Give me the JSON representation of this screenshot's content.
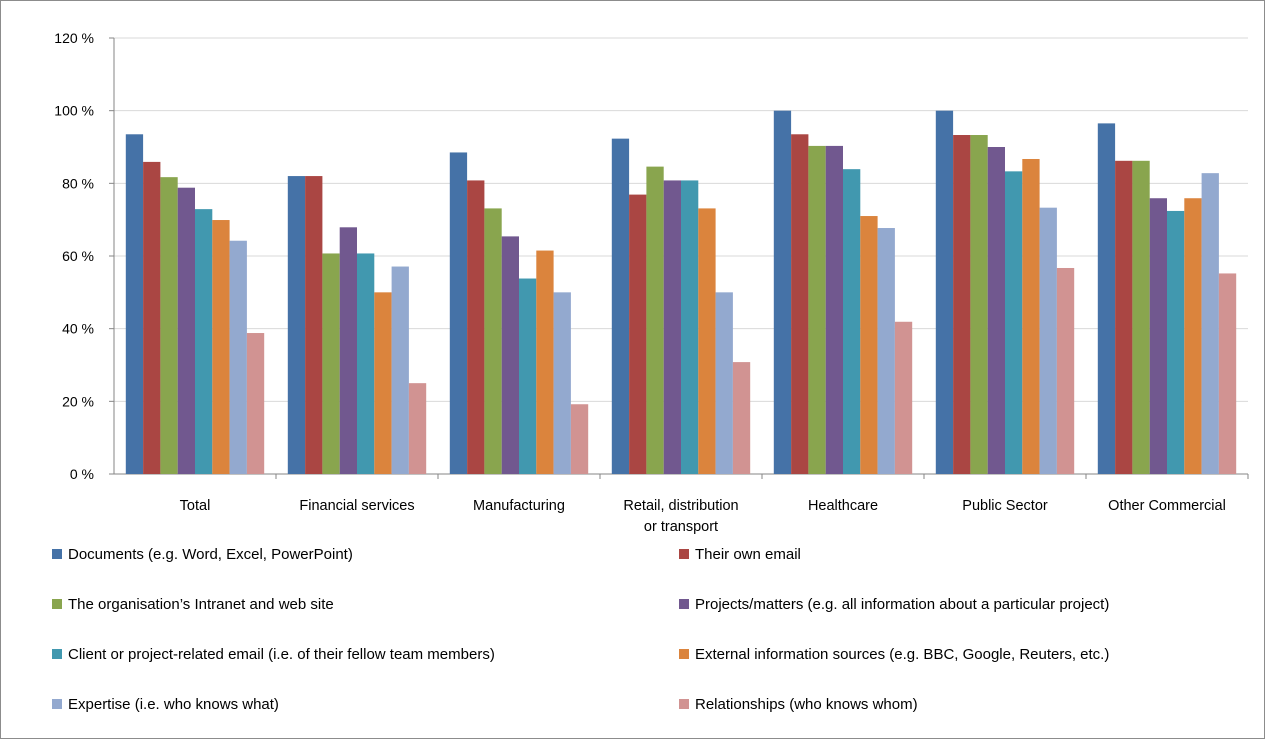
{
  "chart_data": {
    "type": "bar",
    "categories": [
      "Total",
      "Financial services",
      "Manufacturing",
      "Retail, distribution or transport",
      "Healthcare",
      "Public Sector",
      "Other Commercial"
    ],
    "category_lines": [
      [
        "Total"
      ],
      [
        "Financial services"
      ],
      [
        "Manufacturing"
      ],
      [
        "Retail, distribution",
        "or transport"
      ],
      [
        "Healthcare"
      ],
      [
        "Public Sector"
      ],
      [
        "Other Commercial"
      ]
    ],
    "ylim": [
      0,
      120
    ],
    "yticks": [
      0,
      20,
      40,
      60,
      80,
      100,
      120
    ],
    "ytick_labels": [
      "0 %",
      "20 %",
      "40 %",
      "60 %",
      "80 %",
      "100 %",
      "120 %"
    ],
    "grid": true,
    "legend_position": "bottom",
    "series": [
      {
        "name": "Documents (e.g. Word, Excel, PowerPoint)",
        "color": "#4572A7",
        "values": [
          93.5,
          82,
          88.5,
          92.3,
          100,
          100,
          96.5
        ]
      },
      {
        "name": "Their own email",
        "color": "#AA4643",
        "values": [
          85.9,
          82,
          80.8,
          76.9,
          93.5,
          93.3,
          86.2
        ]
      },
      {
        "name": "The organisation’s Intranet and web site",
        "color": "#89A54E",
        "values": [
          81.7,
          60.7,
          73.1,
          84.6,
          90.3,
          93.3,
          86.2
        ]
      },
      {
        "name": "Projects/matters (e.g. all information about a particular project)",
        "color": "#71588F",
        "values": [
          78.8,
          67.9,
          65.4,
          80.8,
          90.3,
          90,
          75.9
        ]
      },
      {
        "name": "Client or project-related email (i.e. of their fellow team members)",
        "color": "#4198AF",
        "values": [
          72.9,
          60.7,
          53.8,
          80.8,
          83.9,
          83.3,
          72.4
        ]
      },
      {
        "name": "External information sources (e.g. BBC, Google, Reuters, etc.)",
        "color": "#DB843D",
        "values": [
          69.9,
          50,
          61.5,
          73.1,
          71,
          86.7,
          75.9
        ]
      },
      {
        "name": "Expertise (i.e. who knows what)",
        "color": "#93A9CF",
        "values": [
          64.2,
          57.1,
          50,
          50,
          67.7,
          73.3,
          82.8
        ]
      },
      {
        "name": "Relationships (who knows whom)",
        "color": "#D19392",
        "values": [
          38.8,
          25,
          19.2,
          30.8,
          41.9,
          56.7,
          55.2
        ]
      }
    ]
  }
}
